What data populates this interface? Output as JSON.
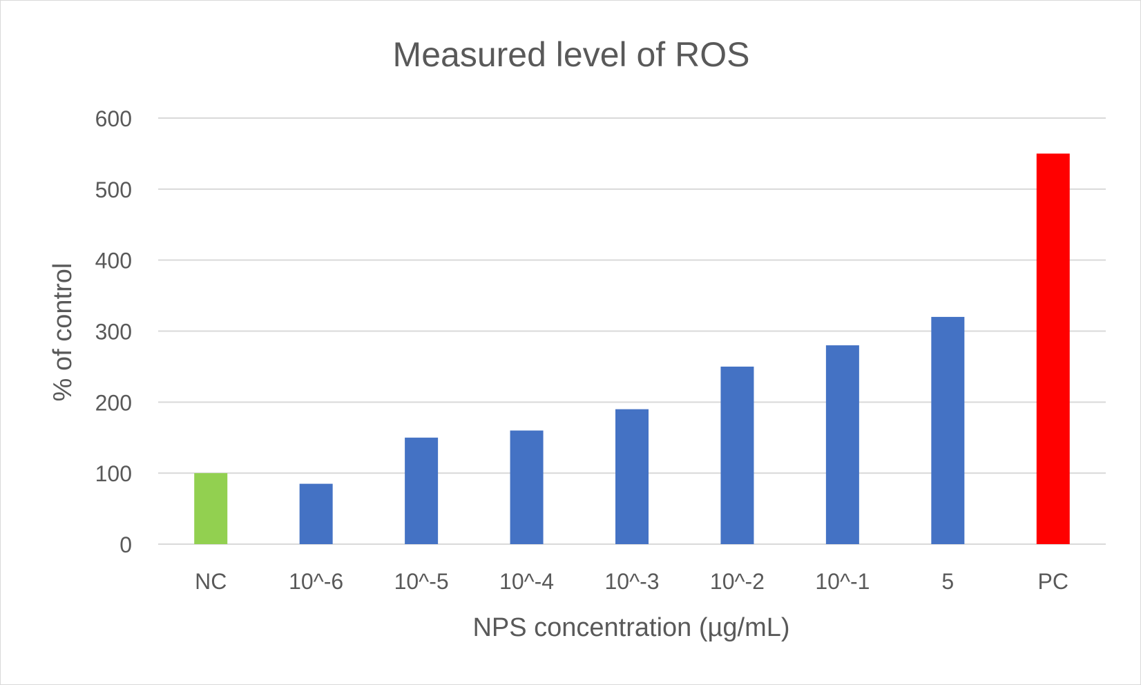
{
  "chart_data": {
    "type": "bar",
    "title": "Measured level of ROS",
    "xlabel": "NPS concentration (µg/mL)",
    "ylabel": "% of control",
    "categories": [
      "NC",
      "10^-6",
      "10^-5",
      "10^-4",
      "10^-3",
      "10^-2",
      "10^-1",
      "5",
      "PC"
    ],
    "values": [
      100,
      85,
      150,
      160,
      190,
      250,
      280,
      320,
      550
    ],
    "bar_colors": [
      "#92d050",
      "#4472c4",
      "#4472c4",
      "#4472c4",
      "#4472c4",
      "#4472c4",
      "#4472c4",
      "#4472c4",
      "#ff0000"
    ],
    "ylim": [
      0,
      600
    ],
    "yticks": [
      0,
      100,
      200,
      300,
      400,
      500,
      600
    ],
    "grid": true,
    "legend": "none"
  }
}
